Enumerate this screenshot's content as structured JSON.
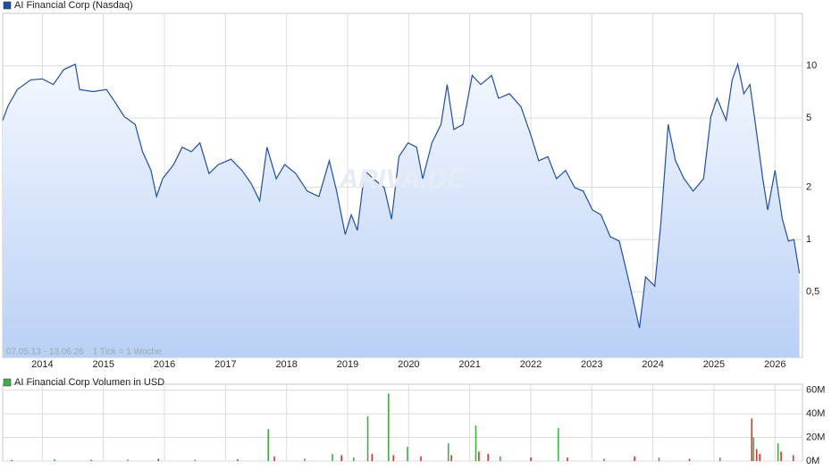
{
  "chart_data": [
    {
      "type": "line",
      "log": true,
      "grid": true,
      "range_label": "07.05.13 - 13.06.26",
      "tick_note": "1 Tick = 1 Woche",
      "watermark": "ARIVA.DE",
      "xlim": [
        2013.35,
        2026.45
      ],
      "xticks": [
        2014,
        2015,
        2016,
        2017,
        2018,
        2019,
        2020,
        2021,
        2022,
        2023,
        2024,
        2025,
        2026
      ],
      "ylim": [
        0.21,
        20
      ],
      "yticks": [
        {
          "value": 0.5,
          "label": "0,5"
        },
        1,
        2,
        5,
        10
      ],
      "x": [
        2013.35,
        2013.44,
        2013.59,
        2013.81,
        2014.0,
        2014.18,
        2014.35,
        2014.54,
        2014.61,
        2014.83,
        2015.05,
        2015.2,
        2015.34,
        2015.52,
        2015.64,
        2015.78,
        2015.87,
        2015.97,
        2016.15,
        2016.29,
        2016.44,
        2016.58,
        2016.73,
        2016.88,
        2017.09,
        2017.27,
        2017.42,
        2017.56,
        2017.68,
        2017.83,
        2017.97,
        2018.15,
        2018.34,
        2018.53,
        2018.7,
        2018.82,
        2018.96,
        2019.06,
        2019.16,
        2019.28,
        2019.42,
        2019.6,
        2019.72,
        2019.84,
        2019.99,
        2020.13,
        2020.23,
        2020.38,
        2020.53,
        2020.63,
        2020.74,
        2020.89,
        2021.04,
        2021.18,
        2021.36,
        2021.47,
        2021.65,
        2021.84,
        2021.99,
        2022.13,
        2022.28,
        2022.42,
        2022.57,
        2022.72,
        2022.86,
        2023.01,
        2023.15,
        2023.3,
        2023.45,
        2023.59,
        2023.69,
        2023.78,
        2023.88,
        2024.03,
        2024.13,
        2024.25,
        2024.37,
        2024.51,
        2024.66,
        2024.83,
        2024.95,
        2025.05,
        2025.2,
        2025.3,
        2025.39,
        2025.49,
        2025.59,
        2025.68,
        2025.8,
        2025.88,
        2026.0,
        2026.12,
        2026.22,
        2026.31,
        2026.4
      ],
      "series": [
        {
          "name": "AI Financial Corp (Nasdaq)",
          "color": "#1f4fa8",
          "values": [
            4.85,
            5.9,
            7.3,
            8.3,
            8.4,
            7.8,
            9.5,
            10.2,
            7.3,
            7.1,
            7.3,
            6.1,
            5.1,
            4.6,
            3.2,
            2.5,
            1.77,
            2.24,
            2.7,
            3.4,
            3.2,
            3.6,
            2.4,
            2.7,
            2.9,
            2.5,
            2.1,
            1.67,
            3.4,
            2.24,
            2.7,
            2.4,
            1.9,
            1.77,
            2.84,
            1.9,
            1.07,
            1.39,
            1.13,
            2.5,
            2.24,
            1.99,
            1.31,
            3.0,
            3.6,
            3.4,
            2.24,
            3.6,
            4.6,
            7.8,
            4.3,
            4.6,
            8.8,
            7.8,
            8.8,
            6.5,
            6.9,
            5.8,
            4.1,
            2.84,
            3.0,
            2.24,
            2.5,
            1.99,
            1.9,
            1.48,
            1.39,
            1.04,
            0.98,
            0.61,
            0.43,
            0.31,
            0.61,
            0.54,
            1.24,
            4.6,
            2.84,
            2.24,
            1.9,
            2.24,
            5.1,
            6.5,
            4.85,
            8.3,
            10.2,
            6.9,
            7.8,
            4.6,
            2.24,
            1.48,
            2.5,
            1.31,
            0.98,
            1.0,
            0.64
          ]
        }
      ]
    },
    {
      "type": "bar",
      "grid": true,
      "xlim": [
        2013.35,
        2026.45
      ],
      "ylim": [
        0,
        65000000
      ],
      "yticks": [
        {
          "value": 0,
          "label": "0M"
        },
        {
          "value": 20000000,
          "label": "20M"
        },
        {
          "value": 40000000,
          "label": "40M"
        },
        {
          "value": 60000000,
          "label": "60M"
        }
      ],
      "x": [
        2013.5,
        2014.2,
        2014.8,
        2015.4,
        2015.9,
        2016.5,
        2017.2,
        2017.7,
        2017.8,
        2018.3,
        2018.75,
        2018.9,
        2019.1,
        2019.33,
        2019.4,
        2019.67,
        2019.75,
        2019.98,
        2020.2,
        2020.65,
        2020.7,
        2021.1,
        2021.15,
        2021.3,
        2021.5,
        2022.0,
        2022.45,
        2022.6,
        2023.2,
        2023.7,
        2024.1,
        2024.6,
        2025.1,
        2025.62,
        2025.65,
        2025.7,
        2025.75,
        2026.05,
        2026.1,
        2026.3
      ],
      "series": [
        {
          "name": "AI Financial Corp Volumen in USD",
          "color": "#3cb043",
          "values": [
            1000000,
            1500000,
            1000000,
            1200000,
            2000000,
            1000000,
            1500000,
            27000000,
            4000000,
            2000000,
            6000000,
            5000000,
            3000000,
            38000000,
            6000000,
            57000000,
            5000000,
            12000000,
            4000000,
            15000000,
            5000000,
            30000000,
            8000000,
            6000000,
            4000000,
            3000000,
            28000000,
            3000000,
            2000000,
            4000000,
            3000000,
            2000000,
            3000000,
            36000000,
            20000000,
            10000000,
            6000000,
            15000000,
            8000000,
            5000000
          ],
          "colors": [
            "#d9312b",
            "#3cb043",
            "#d9312b",
            "#3cb043",
            "#d9312b",
            "#3cb043",
            "#d9312b",
            "#3cb043",
            "#d9312b",
            "#3cb043",
            "#3cb043",
            "#d9312b",
            "#3cb043",
            "#3cb043",
            "#d9312b",
            "#3cb043",
            "#d9312b",
            "#3cb043",
            "#d9312b",
            "#3cb043",
            "#d9312b",
            "#3cb043",
            "#d9312b",
            "#d9312b",
            "#3cb043",
            "#d9312b",
            "#3cb043",
            "#d9312b",
            "#3cb043",
            "#d9312b",
            "#3cb043",
            "#d9312b",
            "#3cb043",
            "#d9312b",
            "#3cb043",
            "#d9312b",
            "#d9312b",
            "#3cb043",
            "#d9312b",
            "#d9312b"
          ]
        }
      ]
    }
  ]
}
